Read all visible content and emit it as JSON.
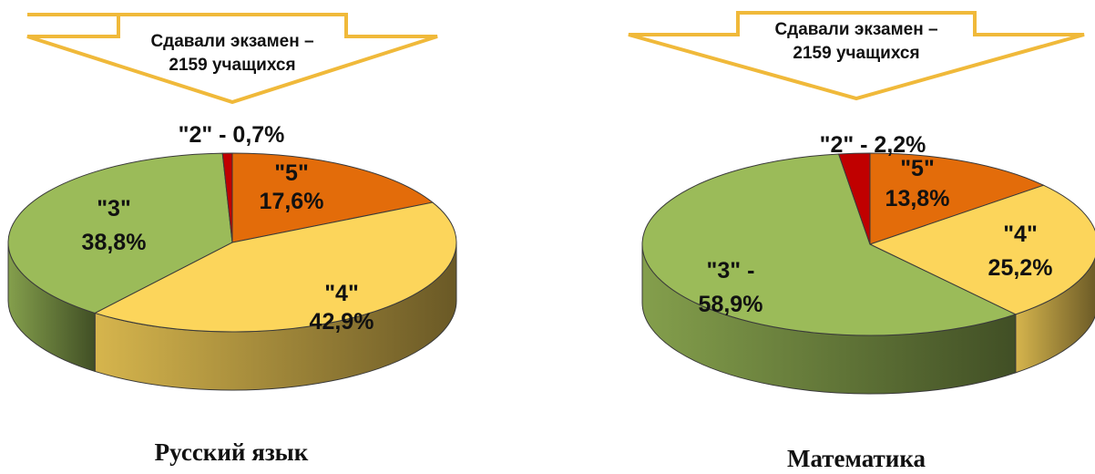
{
  "chart_data": [
    {
      "type": "pie",
      "title": "Русский язык",
      "banner": {
        "line1": "Сдавали экзамен –",
        "line2": "2159 учащихся"
      },
      "slices": [
        {
          "grade": "5",
          "label_line1": "\"5\"",
          "label_line2": "17,6%",
          "value": 17.6,
          "color": "#E36C0A"
        },
        {
          "grade": "4",
          "label_line1": "\"4\"",
          "label_line2": "42,9%",
          "value": 42.9,
          "color": "#FCD55B"
        },
        {
          "grade": "3",
          "label_line1": "\"3\"",
          "label_line2": "38,8%",
          "value": 38.8,
          "color": "#9BBB59"
        },
        {
          "grade": "2",
          "label_line1": "\"2\" - 0,7%",
          "label_line2": "",
          "value": 0.7,
          "color": "#C00000"
        }
      ]
    },
    {
      "type": "pie",
      "title": "Математика",
      "banner": {
        "line1": "Сдавали экзамен –",
        "line2": "2159 учащихся"
      },
      "slices": [
        {
          "grade": "5",
          "label_line1": "\"5\"",
          "label_line2": "13,8%",
          "value": 13.8,
          "color": "#E36C0A"
        },
        {
          "grade": "4",
          "label_line1": "\"4\"",
          "label_line2": "25,2%",
          "value": 25.2,
          "color": "#FCD55B"
        },
        {
          "grade": "3",
          "label_line1": "\"3\" -",
          "label_line2": "58,9%",
          "value": 58.9,
          "color": "#9BBB59"
        },
        {
          "grade": "2",
          "label_line1": "\"2\" - 2,2%",
          "label_line2": "",
          "value": 2.2,
          "color": "#C00000"
        }
      ]
    }
  ],
  "colors": {
    "banner_border": "#F0B93A",
    "outline": "#3a3a3a"
  }
}
